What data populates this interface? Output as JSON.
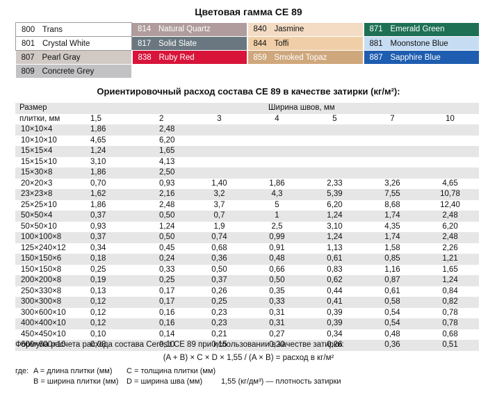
{
  "title": "Цветовая гамма CE 89",
  "palette": {
    "rows": [
      [
        {
          "code": "800",
          "name": "Trans",
          "bg": "#ffffff",
          "fg": "#111111"
        },
        {
          "code": "814",
          "name": "Natural Quartz",
          "bg": "#b09c9c",
          "fg": "#ffffff"
        },
        {
          "code": "840",
          "name": "Jasmine",
          "bg": "#f4dcc4",
          "fg": "#111111"
        },
        {
          "code": "871",
          "name": "Emerald Green",
          "bg": "#1e7055",
          "fg": "#ffffff"
        }
      ],
      [
        {
          "code": "801",
          "name": "Crystal White",
          "bg": "#ffffff",
          "fg": "#111111"
        },
        {
          "code": "817",
          "name": "Solid Slate",
          "bg": "#6a7780",
          "fg": "#ffffff"
        },
        {
          "code": "844",
          "name": "Toffi",
          "bg": "#f0cfa8",
          "fg": "#111111"
        },
        {
          "code": "881",
          "name": "Moonstone Blue",
          "bg": "#c6dcf2",
          "fg": "#111111"
        }
      ],
      [
        {
          "code": "807",
          "name": "Pearl Gray",
          "bg": "#d1c9c4",
          "fg": "#111111"
        },
        {
          "code": "838",
          "name": "Ruby Red",
          "bg": "#d8143a",
          "fg": "#ffffff"
        },
        {
          "code": "859",
          "name": "Smoked Topaz",
          "bg": "#cfa77c",
          "fg": "#ffffff"
        },
        {
          "code": "887",
          "name": "Sapphire Blue",
          "bg": "#1e5db0",
          "fg": "#ffffff"
        }
      ],
      [
        {
          "code": "809",
          "name": "Concrete Grey",
          "bg": "#c2c2c4",
          "fg": "#111111"
        }
      ]
    ]
  },
  "consumption": {
    "title": "Ориентировочный расход состава CE 89 в качестве затирки (кг/м²):",
    "header": {
      "size_label_1": "Размер",
      "size_label_2": "плитки, мм",
      "width_label": "Ширина швов, мм",
      "widths": [
        "1,5",
        "2",
        "3",
        "4",
        "5",
        "7",
        "10"
      ]
    },
    "rows": [
      {
        "size": "10×10×4",
        "values": [
          "1,86",
          "2,48",
          "",
          "",
          "",
          "",
          ""
        ]
      },
      {
        "size": "10×10×10",
        "values": [
          "4,65",
          "6,20",
          "",
          "",
          "",
          "",
          ""
        ]
      },
      {
        "size": "15×15×4",
        "values": [
          "1,24",
          "1,65",
          "",
          "",
          "",
          "",
          ""
        ]
      },
      {
        "size": "15×15×10",
        "values": [
          "3,10",
          "4,13",
          "",
          "",
          "",
          "",
          ""
        ]
      },
      {
        "size": "15×30×8",
        "values": [
          "1,86",
          "2,50",
          "",
          "",
          "",
          "",
          ""
        ]
      },
      {
        "size": "20×20×3",
        "values": [
          "0,70",
          "0,93",
          "1,40",
          "1,86",
          "2,33",
          "3,26",
          "4,65"
        ]
      },
      {
        "size": "23×23×8",
        "values": [
          "1,62",
          "2,16",
          "3,2",
          "4,3",
          "5,39",
          "7,55",
          "10,78"
        ]
      },
      {
        "size": "25×25×10",
        "values": [
          "1,86",
          "2,48",
          "3,7",
          "5",
          "6,20",
          "8,68",
          "12,40"
        ]
      },
      {
        "size": "50×50×4",
        "values": [
          "0,37",
          "0,50",
          "0,7",
          "1",
          "1,24",
          "1,74",
          "2,48"
        ]
      },
      {
        "size": "50×50×10",
        "values": [
          "0,93",
          "1,24",
          "1,9",
          "2,5",
          "3,10",
          "4,35",
          "6,20"
        ]
      },
      {
        "size": "100×100×8",
        "values": [
          "0,37",
          "0,50",
          "0,74",
          "0,99",
          "1,24",
          "1,74",
          "2,48"
        ]
      },
      {
        "size": "125×240×12",
        "values": [
          "0,34",
          "0,45",
          "0,68",
          "0,91",
          "1,13",
          "1,58",
          "2,26"
        ]
      },
      {
        "size": "150×150×6",
        "values": [
          "0,18",
          "0,24",
          "0,36",
          "0,48",
          "0,61",
          "0,85",
          "1,21"
        ]
      },
      {
        "size": "150×150×8",
        "values": [
          "0,25",
          "0,33",
          "0,50",
          "0,66",
          "0,83",
          "1,16",
          "1,65"
        ]
      },
      {
        "size": "200×200×8",
        "values": [
          "0,19",
          "0,25",
          "0,37",
          "0,50",
          "0,62",
          "0,87",
          "1,24"
        ]
      },
      {
        "size": "250×330×8",
        "values": [
          "0,13",
          "0,17",
          "0,26",
          "0,35",
          "0,44",
          "0,61",
          "0,84"
        ]
      },
      {
        "size": "300×300×8",
        "values": [
          "0,12",
          "0,17",
          "0,25",
          "0,33",
          "0,41",
          "0,58",
          "0,82"
        ]
      },
      {
        "size": "300×600×10",
        "values": [
          "0,12",
          "0,16",
          "0,23",
          "0,31",
          "0,39",
          "0,54",
          "0,78"
        ]
      },
      {
        "size": "400×400×10",
        "values": [
          "0,12",
          "0,16",
          "0,23",
          "0,31",
          "0,39",
          "0,54",
          "0,78"
        ]
      },
      {
        "size": "450×450×10",
        "values": [
          "0,10",
          "0,14",
          "0,21",
          "0,27",
          "0,34",
          "0,48",
          "0,68"
        ]
      },
      {
        "size": "600×600×10",
        "values": [
          "0,08",
          "0,10",
          "0,15",
          "0,20",
          "0,26",
          "0,36",
          "0,51"
        ]
      }
    ]
  },
  "formula": {
    "intro": "Формула расчета расхода состава Ceresit CE 89 при использовании в качестве затирки:",
    "equation": "(A + B) × C × D × 1,55 / (A × B) = расход в кг/м²",
    "where": "где:",
    "a_def": "A = длина плитки (мм)",
    "b_def": "B = ширина плитки (мм)",
    "c_def": "C = толщина плитки (мм)",
    "d_def": "D = ширина шва (мм)",
    "density": "1,55 (кг/дм³) — плотность затирки"
  }
}
